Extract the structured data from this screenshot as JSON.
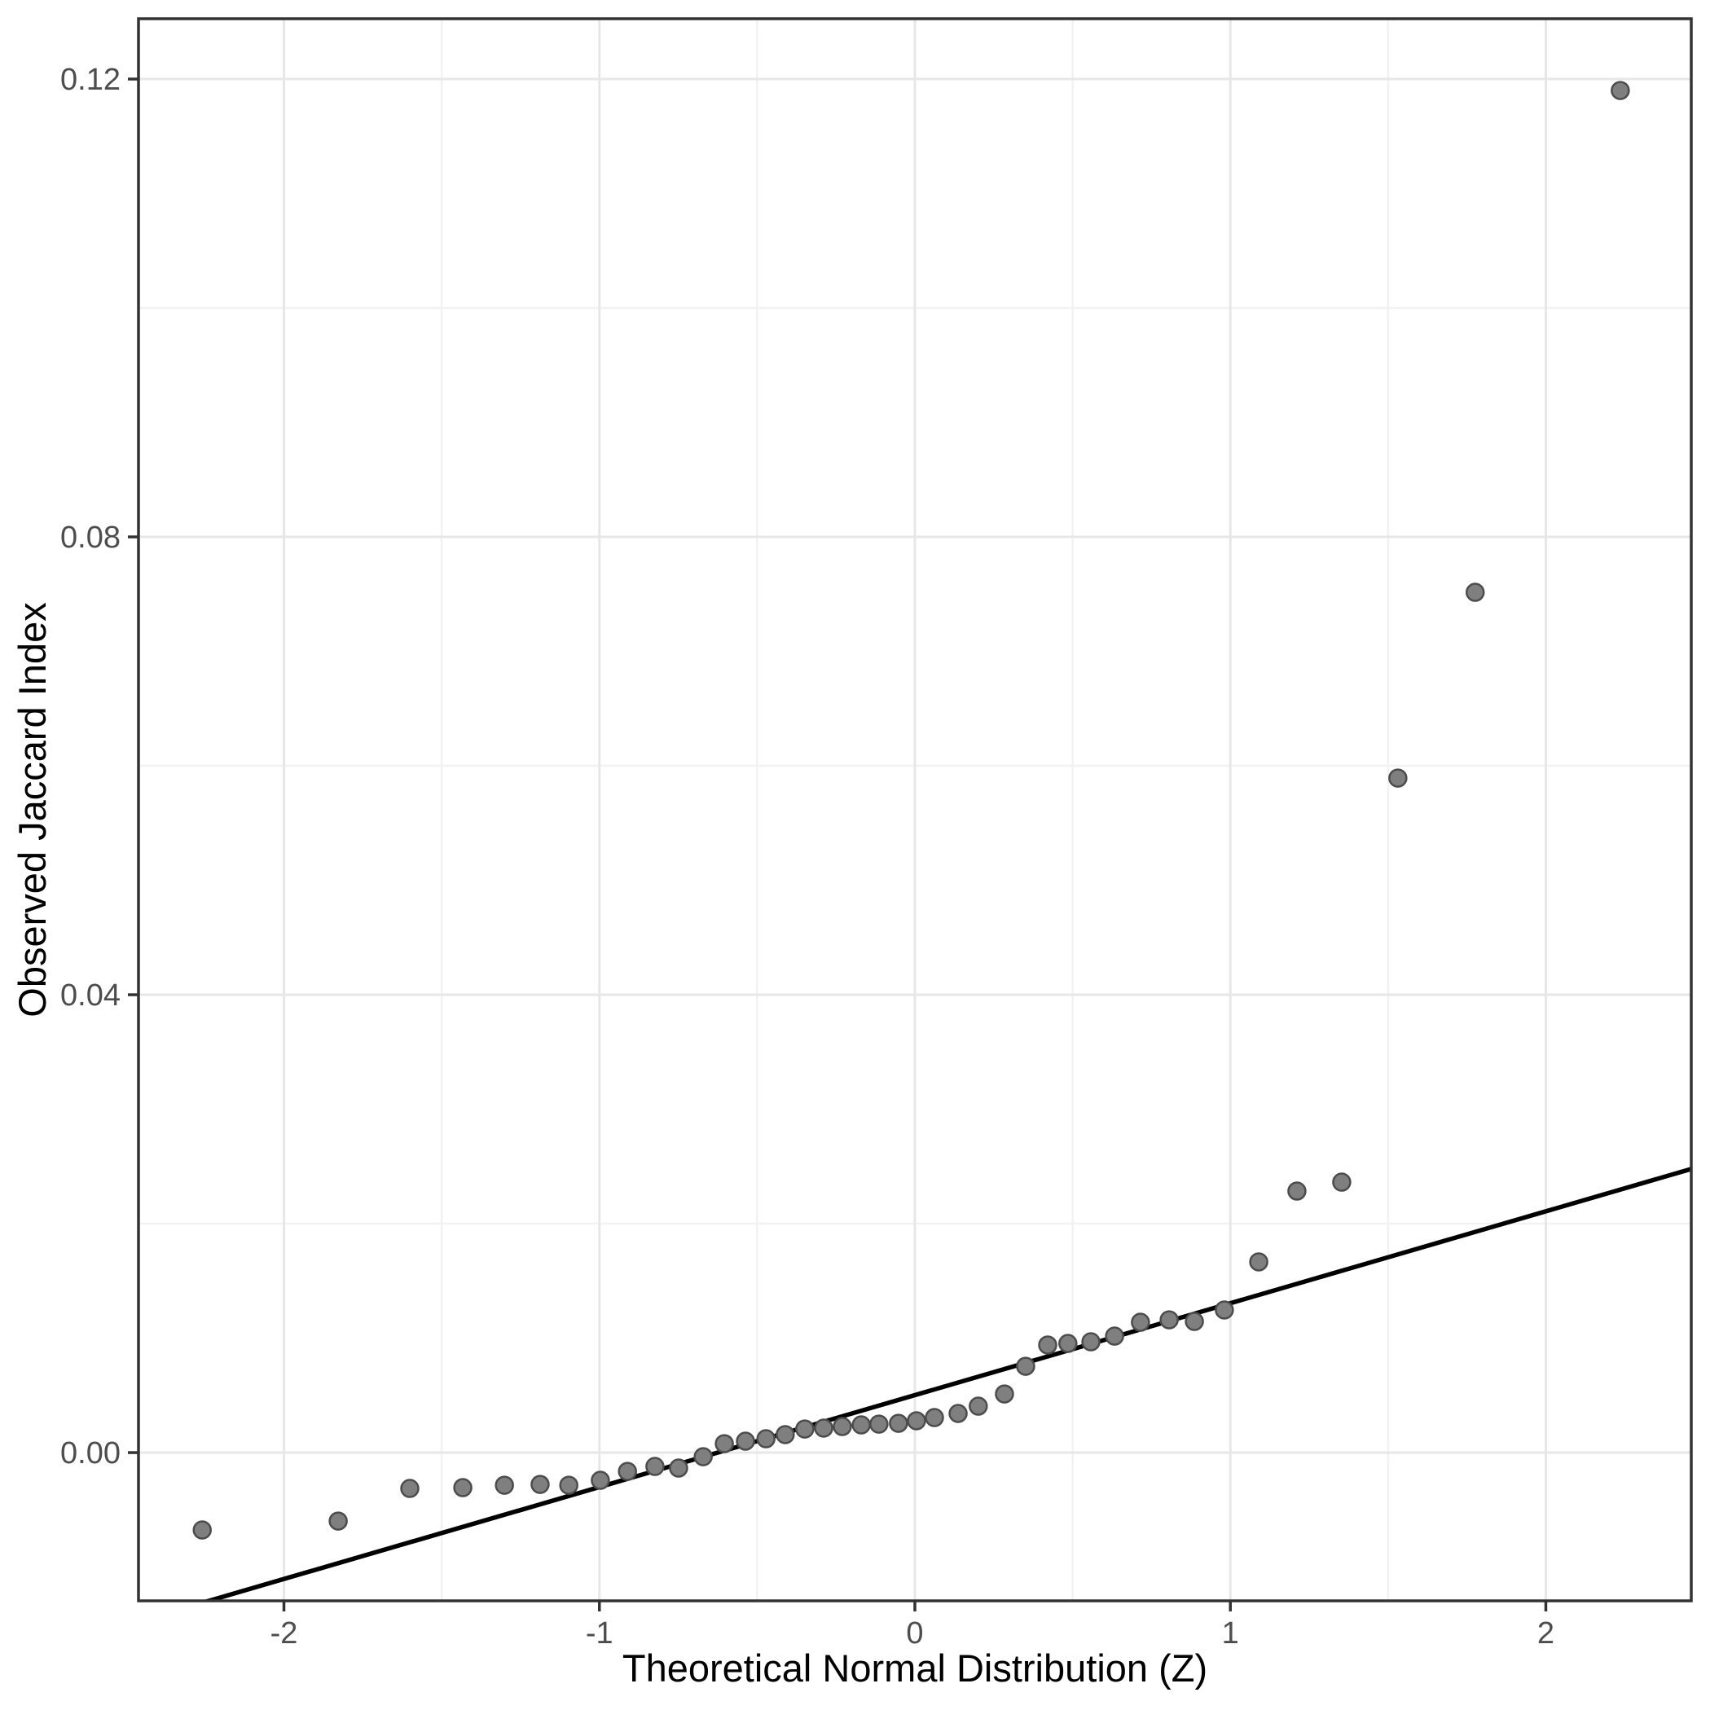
{
  "figure": {
    "background_color": "#ffffff"
  },
  "style": {
    "point_fill": "#7f7f7f",
    "point_stroke": "#4c4c4c",
    "point_radius": 10.5,
    "point_stroke_width": 2.5,
    "reference_line_color": "#000000",
    "reference_line_width": 5.5,
    "grid_major_color": "#e7e7e7",
    "grid_minor_color": "#f2f2f2",
    "panel_border_color": "#333333",
    "tick_color": "#333333",
    "tick_label_color": "#4d4d4d",
    "axis_title_color": "#000000"
  },
  "chart_data": {
    "type": "scatter",
    "title": "",
    "xlabel": "Theoretical Normal Distribution (Z)",
    "ylabel": "Observed Jaccard Index",
    "legend": "none",
    "grid": "major+minor",
    "xlim": [
      -2.461,
      2.461
    ],
    "ylim": [
      -0.01295,
      0.12527
    ],
    "x_major_ticks": [
      -2,
      -1,
      0,
      1,
      2
    ],
    "x_major_labels": [
      "-2",
      "-1",
      "0",
      "1",
      "2"
    ],
    "x_minor_ticks": [
      -1.5,
      -0.5,
      0.5,
      1.5
    ],
    "y_major_ticks": [
      0.0,
      0.04,
      0.08,
      0.12
    ],
    "y_major_labels": [
      "0.00",
      "0.04",
      "0.08",
      "0.12"
    ],
    "y_minor_ticks": [
      0.02,
      0.06,
      0.1
    ],
    "points": [
      [
        -2.259,
        -0.00676
      ],
      [
        -1.828,
        -0.00598
      ],
      [
        -1.601,
        -0.00313
      ],
      [
        -1.433,
        -0.00306
      ],
      [
        -1.301,
        -0.00285
      ],
      [
        -1.188,
        -0.00278
      ],
      [
        -1.097,
        -0.00285
      ],
      [
        -0.997,
        -0.00242
      ],
      [
        -0.911,
        -0.00164
      ],
      [
        -0.824,
        -0.00121
      ],
      [
        -0.749,
        -0.00135
      ],
      [
        -0.671,
        -0.00036
      ],
      [
        -0.604,
        0.00078
      ],
      [
        -0.537,
        0.001
      ],
      [
        -0.472,
        0.00121
      ],
      [
        -0.411,
        0.00157
      ],
      [
        -0.349,
        0.00206
      ],
      [
        -0.289,
        0.00214
      ],
      [
        -0.23,
        0.00228
      ],
      [
        -0.17,
        0.00242
      ],
      [
        -0.114,
        0.00249
      ],
      [
        -0.052,
        0.00256
      ],
      [
        0.005,
        0.00278
      ],
      [
        0.062,
        0.00306
      ],
      [
        0.137,
        0.00342
      ],
      [
        0.201,
        0.00406
      ],
      [
        0.284,
        0.00512
      ],
      [
        0.351,
        0.00754
      ],
      [
        0.421,
        0.0094
      ],
      [
        0.485,
        0.00954
      ],
      [
        0.558,
        0.00968
      ],
      [
        0.633,
        0.01018
      ],
      [
        0.715,
        0.01139
      ],
      [
        0.806,
        0.0116
      ],
      [
        0.886,
        0.01146
      ],
      [
        0.981,
        0.01246
      ],
      [
        1.09,
        0.01666
      ],
      [
        1.211,
        0.02285
      ],
      [
        1.353,
        0.02363
      ],
      [
        1.531,
        0.05893
      ],
      [
        1.776,
        0.07516
      ],
      [
        2.236,
        0.119
      ]
    ],
    "reference_line": {
      "type": "qq-line",
      "intercept": 0.00502,
      "slope": 0.00803
    }
  }
}
